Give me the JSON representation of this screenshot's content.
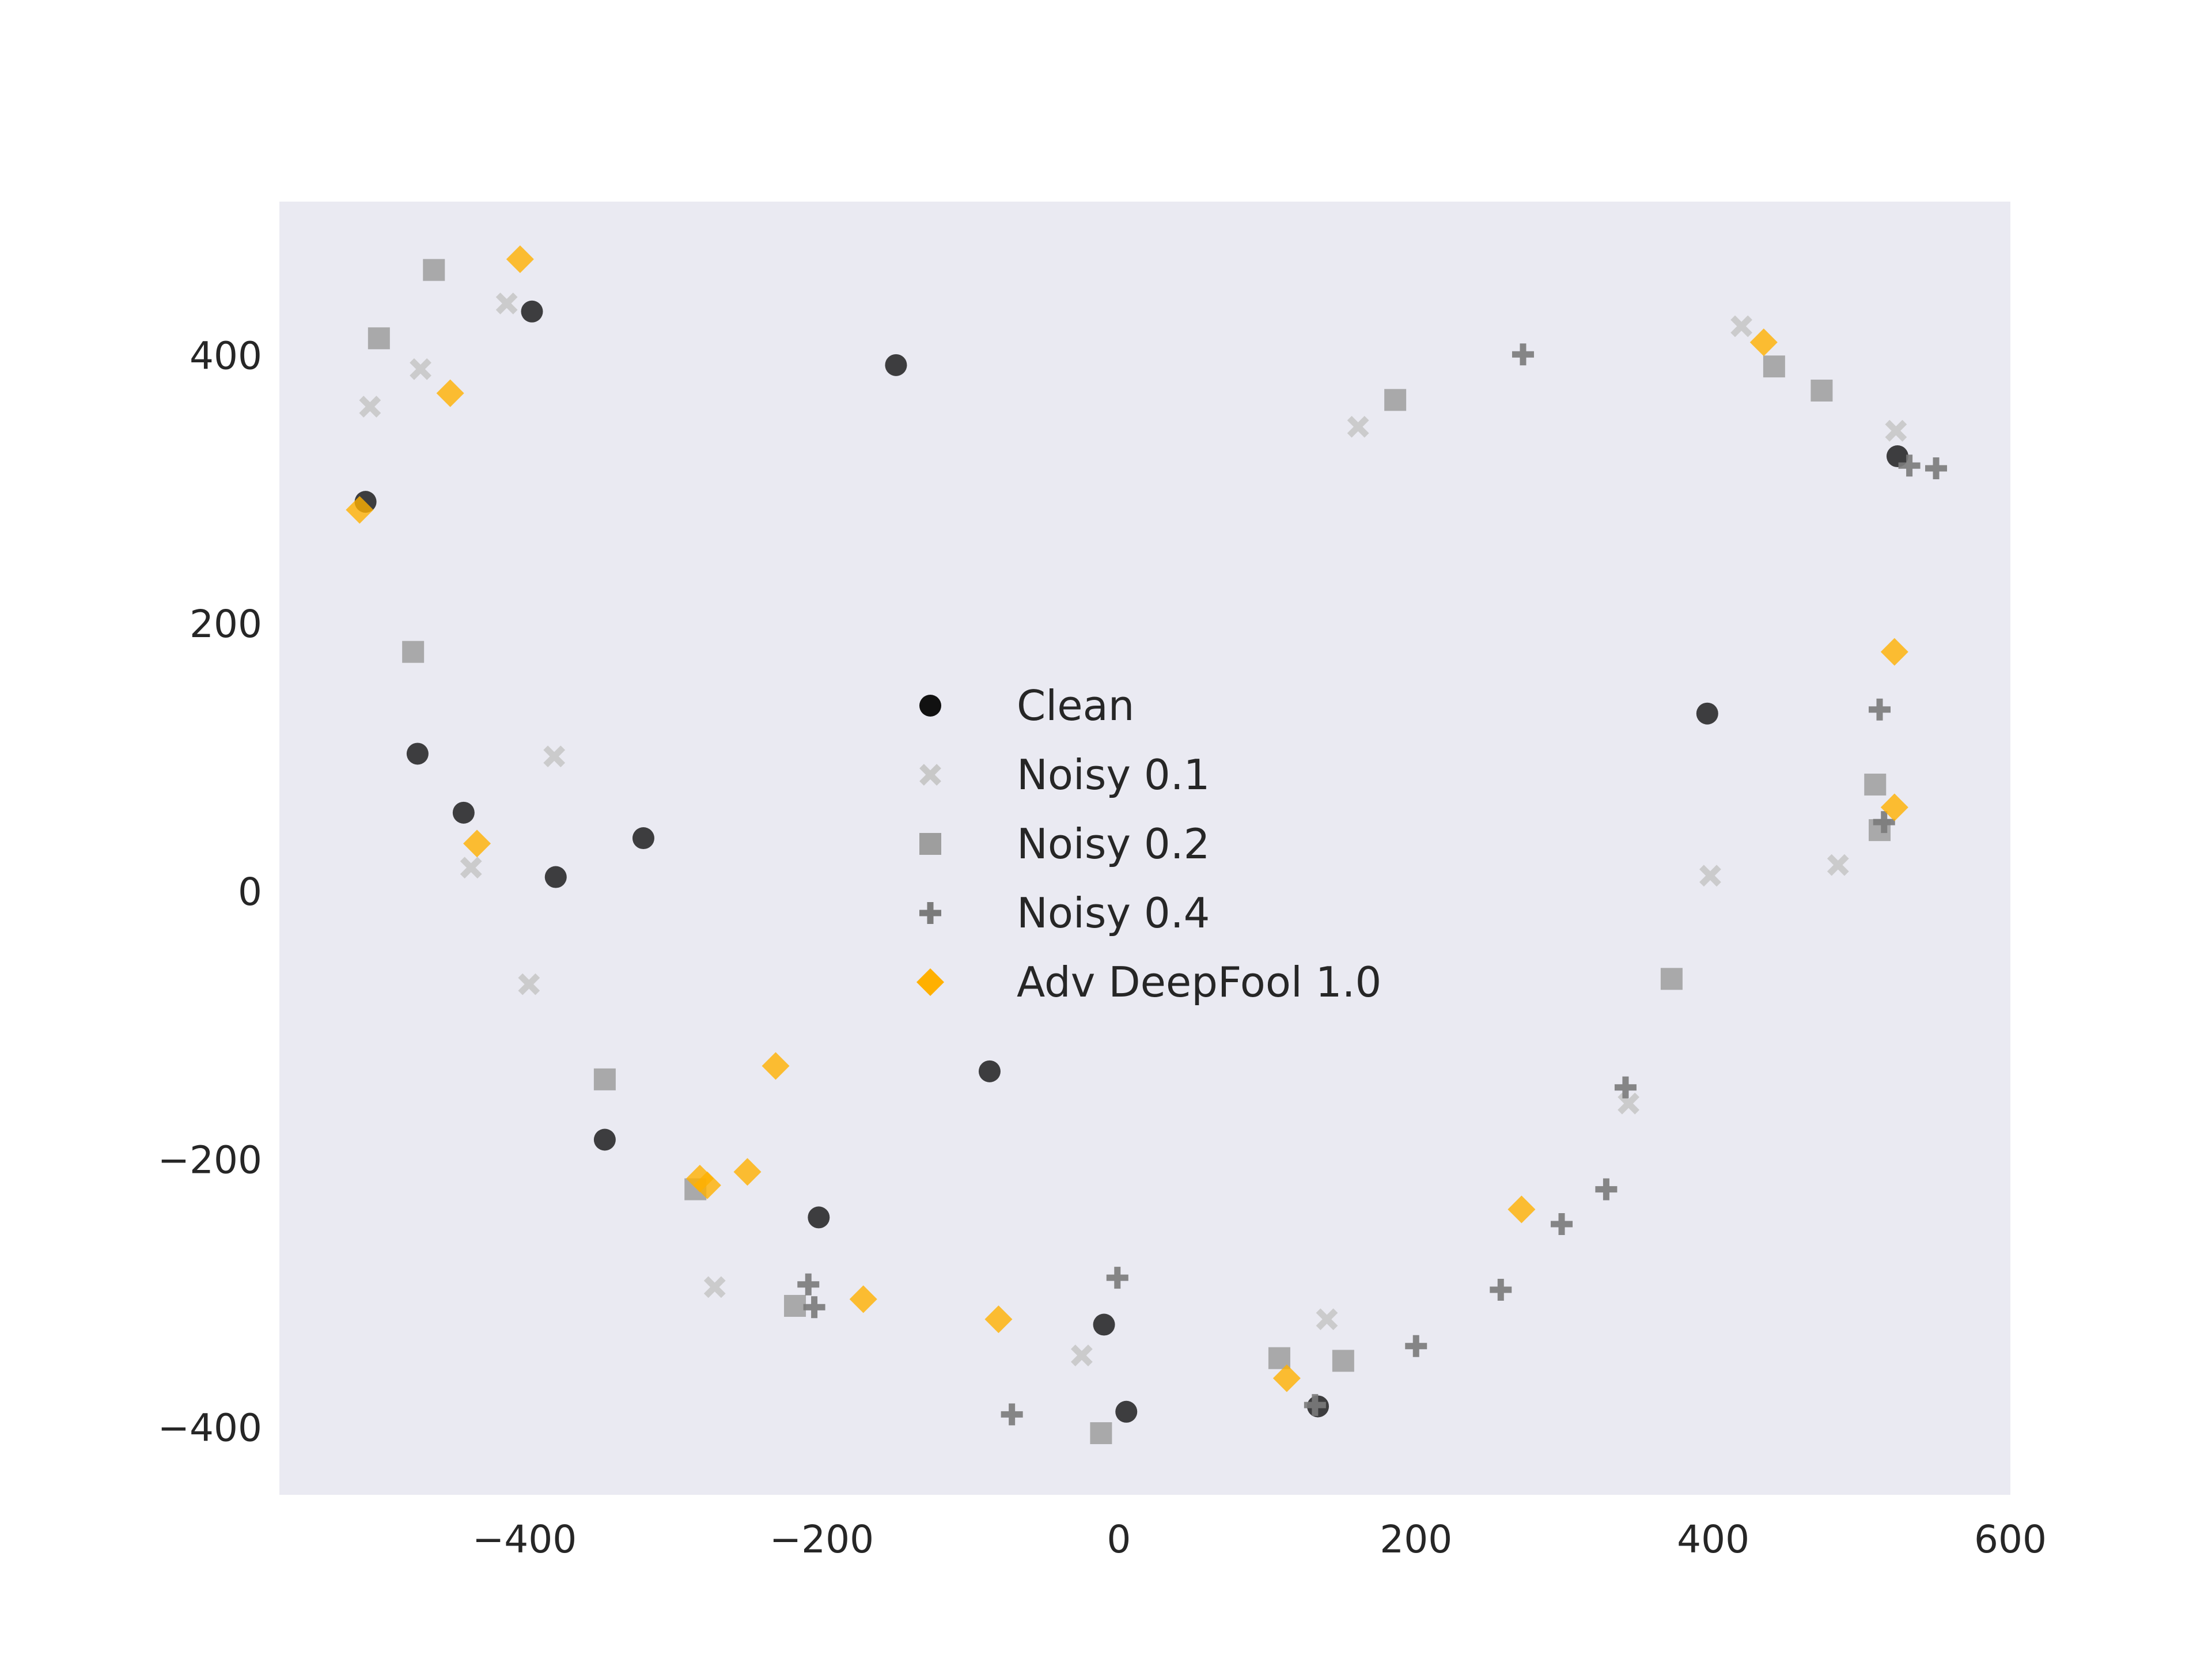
{
  "chart_data": {
    "type": "scatter",
    "title": "",
    "xlabel": "",
    "ylabel": "",
    "xlim": [
      -565,
      600
    ],
    "ylim": [
      -450,
      515
    ],
    "grid": false,
    "plot_background": "#eaeaf2",
    "x_ticks": [
      -400,
      -200,
      0,
      200,
      400,
      600
    ],
    "x_tick_labels": [
      "−400",
      "−200",
      "0",
      "200",
      "400",
      "600"
    ],
    "y_ticks": [
      -400,
      -200,
      0,
      200,
      400
    ],
    "y_tick_labels": [
      "−400",
      "−200",
      "0",
      "200",
      "400"
    ],
    "legend_position": "center",
    "series": [
      {
        "name": "Clean",
        "marker": "circle",
        "color": "#111111",
        "opacity": 0.8,
        "points": [
          [
            -507,
            291
          ],
          [
            -395,
            433
          ],
          [
            -150,
            393
          ],
          [
            -472,
            103
          ],
          [
            -441,
            59
          ],
          [
            -379,
            11
          ],
          [
            -320,
            40
          ],
          [
            -346,
            -185
          ],
          [
            -202,
            -243
          ],
          [
            -87,
            -134
          ],
          [
            -10,
            -323
          ],
          [
            5,
            -388
          ],
          [
            134,
            -384
          ],
          [
            396,
            133
          ],
          [
            524,
            325
          ]
        ]
      },
      {
        "name": "Noisy 0.1",
        "marker": "x",
        "color": "#c8c8c8",
        "opacity": 0.9,
        "points": [
          [
            -412,
            439
          ],
          [
            -470,
            390
          ],
          [
            -504,
            362
          ],
          [
            -380,
            101
          ],
          [
            -436,
            18
          ],
          [
            -397,
            -69
          ],
          [
            -272,
            -295
          ],
          [
            -25,
            -346
          ],
          [
            140,
            -319
          ],
          [
            161,
            347
          ],
          [
            419,
            422
          ],
          [
            523,
            344
          ],
          [
            398,
            12
          ],
          [
            484,
            20
          ],
          [
            343,
            -158
          ]
        ]
      },
      {
        "name": "Noisy 0.2",
        "marker": "square",
        "color": "#9e9e9e",
        "opacity": 0.85,
        "points": [
          [
            -461,
            464
          ],
          [
            -498,
            413
          ],
          [
            -475,
            179
          ],
          [
            -346,
            -140
          ],
          [
            -285,
            -222
          ],
          [
            -218,
            -309
          ],
          [
            -12,
            -404
          ],
          [
            108,
            -348
          ],
          [
            151,
            -350
          ],
          [
            186,
            367
          ],
          [
            441,
            392
          ],
          [
            473,
            374
          ],
          [
            509,
            80
          ],
          [
            512,
            46
          ],
          [
            372,
            -65
          ]
        ]
      },
      {
        "name": "Noisy 0.4",
        "marker": "plus",
        "color": "#7b7b7b",
        "opacity": 0.9,
        "points": [
          [
            272,
            401
          ],
          [
            532,
            318
          ],
          [
            550,
            316
          ],
          [
            512,
            136
          ],
          [
            515,
            52
          ],
          [
            341,
            -146
          ],
          [
            328,
            -222
          ],
          [
            298,
            -248
          ],
          [
            257,
            -297
          ],
          [
            200,
            -339
          ],
          [
            132,
            -383
          ],
          [
            -1,
            -288
          ],
          [
            -72,
            -390
          ],
          [
            -209,
            -293
          ],
          [
            -205,
            -310
          ]
        ]
      },
      {
        "name": "Adv DeepFool 1.0",
        "marker": "diamond",
        "color": "#ffb000",
        "opacity": 0.8,
        "points": [
          [
            -403,
            472
          ],
          [
            -450,
            372
          ],
          [
            -511,
            285
          ],
          [
            -432,
            36
          ],
          [
            -231,
            -130
          ],
          [
            -250,
            -209
          ],
          [
            -282,
            -214
          ],
          [
            -277,
            -219
          ],
          [
            -172,
            -304
          ],
          [
            -81,
            -319
          ],
          [
            113,
            -363
          ],
          [
            271,
            -237
          ],
          [
            434,
            410
          ],
          [
            522,
            179
          ],
          [
            522,
            63
          ]
        ]
      }
    ]
  }
}
